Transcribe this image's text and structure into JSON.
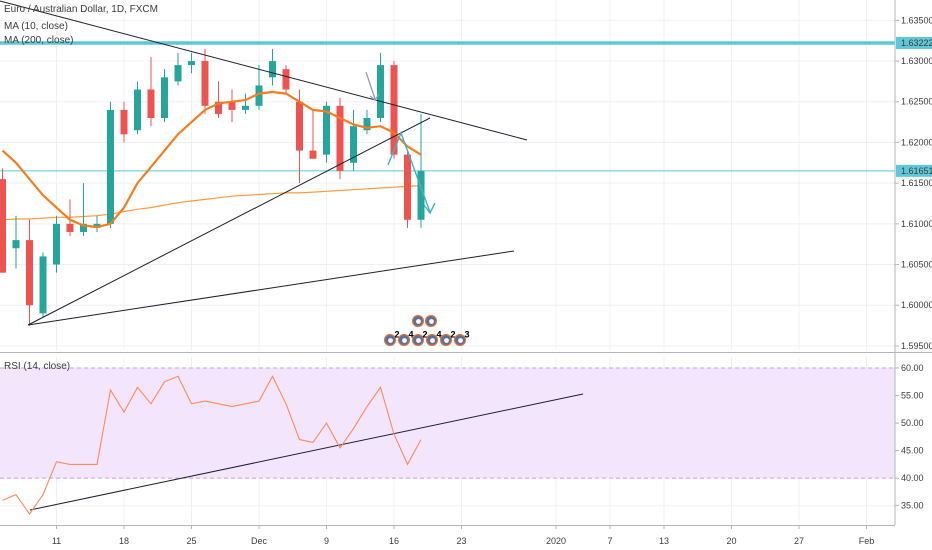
{
  "legend": {
    "symbol": "Euro / Australian Dollar, 1D, FXCM",
    "ma10": "MA (10, close)",
    "ma200": "MA (200, close)",
    "rsi": "RSI (14, close)"
  },
  "colors": {
    "up": "#26a69a",
    "down": "#ef5350",
    "ma10": "#f57c1f",
    "ma200": "#ff9a3c",
    "rsi": "#ff8a5a",
    "hline": "#5ec8d8",
    "trend": "#1e1e2d",
    "arrow": "#3cb5c8",
    "rsi_band": "#f3e6fc"
  },
  "price_axis": {
    "ticks": [
      "1.63500",
      "1.63000",
      "1.62500",
      "1.62000",
      "1.61500",
      "1.61000",
      "1.60500",
      "1.60000",
      "1.59500"
    ],
    "tick_values": [
      1.635,
      1.63,
      1.625,
      1.62,
      1.615,
      1.61,
      1.605,
      1.6,
      1.595
    ],
    "range": [
      1.5945,
      1.6375
    ],
    "highlight_labels": [
      {
        "value": 1.63222,
        "label": "1.63222",
        "color": "#5ec8d8"
      },
      {
        "value": 1.61651,
        "label": "1.61651",
        "color": "#5ec8d8"
      }
    ]
  },
  "rsi_axis": {
    "ticks": [
      "60.00",
      "55.00",
      "50.00",
      "45.00",
      "40.00",
      "35.00"
    ],
    "tick_values": [
      60,
      55,
      50,
      45,
      40,
      35
    ],
    "range": [
      31.5,
      62
    ],
    "band": [
      40,
      60
    ]
  },
  "time_axis": {
    "ticks": [
      "11",
      "18",
      "25",
      "Dec",
      "9",
      "16",
      "23",
      "2020",
      "7",
      "13",
      "20",
      "27",
      "Feb"
    ],
    "tick_index": [
      4,
      9,
      14,
      19,
      24,
      29,
      34,
      41,
      45,
      49,
      54,
      59,
      64
    ]
  },
  "chart_data": {
    "type": "candlestick",
    "title": "Euro / Australian Dollar, 1D, FXCM",
    "series_ma": [
      "MA (10, close)",
      "MA (200, close)"
    ],
    "candles": [
      {
        "o": 1.6155,
        "h": 1.6168,
        "l": 1.604,
        "c": 1.604
      },
      {
        "o": 1.607,
        "h": 1.611,
        "l": 1.6045,
        "c": 1.608
      },
      {
        "o": 1.608,
        "h": 1.6105,
        "l": 1.5975,
        "c": 1.6
      },
      {
        "o": 1.599,
        "h": 1.6065,
        "l": 1.5985,
        "c": 1.606
      },
      {
        "o": 1.605,
        "h": 1.611,
        "l": 1.604,
        "c": 1.61
      },
      {
        "o": 1.61,
        "h": 1.613,
        "l": 1.6085,
        "c": 1.609
      },
      {
        "o": 1.609,
        "h": 1.615,
        "l": 1.6085,
        "c": 1.61
      },
      {
        "o": 1.6095,
        "h": 1.611,
        "l": 1.609,
        "c": 1.61
      },
      {
        "o": 1.61,
        "h": 1.625,
        "l": 1.6095,
        "c": 1.624
      },
      {
        "o": 1.624,
        "h": 1.625,
        "l": 1.62,
        "c": 1.621
      },
      {
        "o": 1.6215,
        "h": 1.6275,
        "l": 1.621,
        "c": 1.6265
      },
      {
        "o": 1.6265,
        "h": 1.6305,
        "l": 1.622,
        "c": 1.623
      },
      {
        "o": 1.623,
        "h": 1.629,
        "l": 1.6225,
        "c": 1.628
      },
      {
        "o": 1.6275,
        "h": 1.631,
        "l": 1.627,
        "c": 1.6295
      },
      {
        "o": 1.6295,
        "h": 1.631,
        "l": 1.6285,
        "c": 1.63
      },
      {
        "o": 1.63,
        "h": 1.6315,
        "l": 1.6235,
        "c": 1.6245
      },
      {
        "o": 1.625,
        "h": 1.6275,
        "l": 1.623,
        "c": 1.6235
      },
      {
        "o": 1.625,
        "h": 1.6265,
        "l": 1.6225,
        "c": 1.624
      },
      {
        "o": 1.624,
        "h": 1.626,
        "l": 1.6235,
        "c": 1.6245
      },
      {
        "o": 1.6245,
        "h": 1.6295,
        "l": 1.624,
        "c": 1.627
      },
      {
        "o": 1.628,
        "h": 1.6315,
        "l": 1.627,
        "c": 1.63
      },
      {
        "o": 1.629,
        "h": 1.6295,
        "l": 1.626,
        "c": 1.6265
      },
      {
        "o": 1.625,
        "h": 1.6265,
        "l": 1.615,
        "c": 1.619
      },
      {
        "o": 1.619,
        "h": 1.624,
        "l": 1.618,
        "c": 1.618
      },
      {
        "o": 1.6185,
        "h": 1.625,
        "l": 1.6175,
        "c": 1.6245
      },
      {
        "o": 1.6245,
        "h": 1.6255,
        "l": 1.6155,
        "c": 1.6165
      },
      {
        "o": 1.6175,
        "h": 1.624,
        "l": 1.6165,
        "c": 1.622
      },
      {
        "o": 1.6215,
        "h": 1.624,
        "l": 1.621,
        "c": 1.623
      },
      {
        "o": 1.623,
        "h": 1.631,
        "l": 1.6225,
        "c": 1.6295
      },
      {
        "o": 1.6295,
        "h": 1.63,
        "l": 1.618,
        "c": 1.6185
      },
      {
        "o": 1.6185,
        "h": 1.619,
        "l": 1.6095,
        "c": 1.6105
      },
      {
        "o": 1.6105,
        "h": 1.6235,
        "l": 1.6095,
        "c": 1.6165
      }
    ],
    "ma10": [
      1.619,
      1.6175,
      1.6155,
      1.6135,
      1.612,
      1.6105,
      1.6098,
      1.6096,
      1.61,
      1.612,
      1.615,
      1.617,
      1.619,
      1.621,
      1.6225,
      1.624,
      1.6248,
      1.625,
      1.6252,
      1.626,
      1.6262,
      1.626,
      1.625,
      1.624,
      1.6238,
      1.623,
      1.6222,
      1.6218,
      1.622,
      1.6212,
      1.6195,
      1.6185
    ],
    "ma200": [
      1.6105,
      1.6106,
      1.6106,
      1.6107,
      1.6108,
      1.6108,
      1.6109,
      1.611,
      1.6112,
      1.6115,
      1.6118,
      1.612,
      1.6123,
      1.6126,
      1.6128,
      1.613,
      1.6132,
      1.6134,
      1.6135,
      1.6136,
      1.6137,
      1.6138,
      1.6138,
      1.6139,
      1.614,
      1.6141,
      1.6142,
      1.6143,
      1.6144,
      1.6145,
      1.6146,
      1.6147
    ],
    "rsi": [
      36.0,
      37.0,
      33.5,
      37.0,
      43.0,
      42.5,
      42.5,
      42.5,
      56.0,
      52.0,
      56.5,
      53.5,
      57.5,
      58.5,
      53.5,
      54.0,
      53.5,
      53.0,
      53.5,
      54.0,
      58.5,
      53.5,
      47.0,
      46.5,
      50.0,
      45.5,
      49.0,
      53.0,
      56.5,
      48.0,
      42.5,
      47.0
    ],
    "horizontal_levels": [
      1.63222,
      1.61651
    ]
  },
  "badges": {
    "row1": [
      "",
      ""
    ],
    "row2": [
      "2",
      "4",
      "2",
      "4",
      "2",
      "3"
    ]
  }
}
